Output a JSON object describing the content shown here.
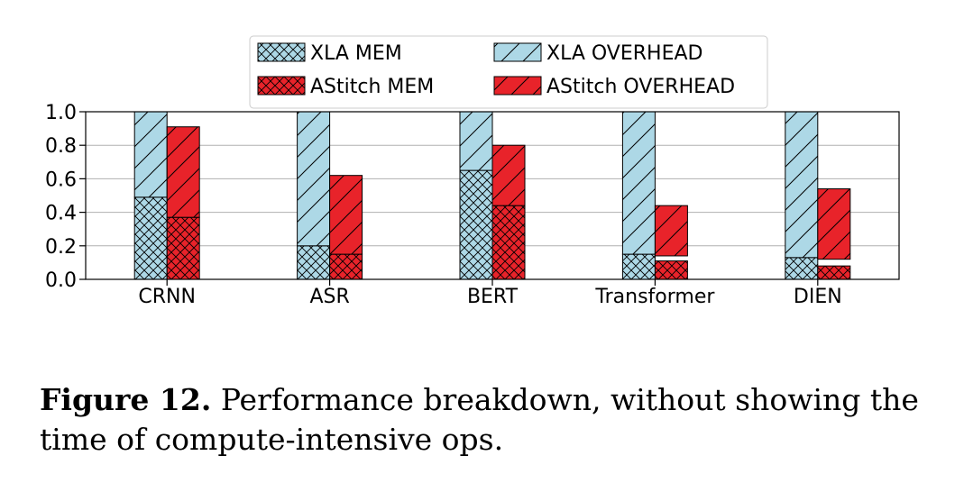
{
  "chart_data": {
    "type": "bar",
    "stacked": true,
    "categories": [
      "CRNN",
      "ASR",
      "BERT",
      "Transformer",
      "DIEN"
    ],
    "series": [
      {
        "name": "XLA MEM",
        "group": "XLA",
        "stack_part": "MEM",
        "color": "#add8e6",
        "hatch": "crosshatch",
        "values": [
          0.49,
          0.2,
          0.65,
          0.15,
          0.13
        ]
      },
      {
        "name": "XLA OVERHEAD",
        "group": "XLA",
        "stack_part": "OVERHEAD",
        "color": "#add8e6",
        "hatch": "diagonal",
        "values": [
          0.51,
          0.8,
          0.35,
          0.85,
          0.87
        ]
      },
      {
        "name": "AStitch MEM",
        "group": "AStitch",
        "stack_part": "MEM",
        "color": "#e8232a",
        "hatch": "crosshatch",
        "values": [
          0.37,
          0.15,
          0.44,
          0.11,
          0.08
        ]
      },
      {
        "name": "AStitch OVERHEAD",
        "group": "AStitch",
        "stack_part": "OVERHEAD",
        "color": "#e8232a",
        "hatch": "diagonal",
        "values": [
          0.54,
          0.47,
          0.36,
          0.3,
          0.42
        ]
      }
    ],
    "gap_between_stacks": [
      0.0,
      0.0,
      0.0,
      0.03,
      0.04
    ],
    "ylim": [
      0.0,
      1.0
    ],
    "yticks": [
      "0.0",
      "0.2",
      "0.4",
      "0.6",
      "0.8",
      "1.0"
    ],
    "xlabel": "",
    "ylabel": "",
    "grid": "horizontal",
    "legend_position": "top-center",
    "legend": [
      "XLA MEM",
      "XLA OVERHEAD",
      "AStitch MEM",
      "AStitch OVERHEAD"
    ]
  },
  "caption": {
    "label": "Figure 12.",
    "text": " Performance breakdown, without showing the time of compute-intensive ops."
  }
}
